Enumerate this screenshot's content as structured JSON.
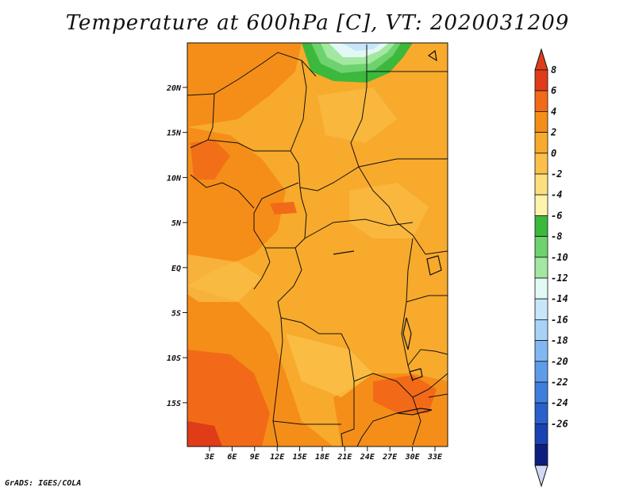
{
  "title": "Temperature at 600hPa [C], VT: 2020031209",
  "credit": "GrADS: IGES/COLA",
  "map": {
    "lat_labels": [
      "20N",
      "15N",
      "10N",
      "5N",
      "EQ",
      "5S",
      "10S",
      "15S"
    ],
    "lon_labels": [
      "3E",
      "6E",
      "9E",
      "12E",
      "15E",
      "18E",
      "21E",
      "24E",
      "27E",
      "30E",
      "33E"
    ]
  },
  "colorbar": {
    "labels": [
      "8",
      "6",
      "4",
      "2",
      "0",
      "-2",
      "-4",
      "-6",
      "-8",
      "-10",
      "-12",
      "-14",
      "-16",
      "-18",
      "-20",
      "-22",
      "-24",
      "-26"
    ],
    "colors": [
      "#e03c18",
      "#f26a18",
      "#f58e18",
      "#f8aa2c",
      "#fac04a",
      "#fde07e",
      "#fef4ac",
      "#3cb83c",
      "#6ed26e",
      "#a2e8a0",
      "#e2f8f4",
      "#c8e6fa",
      "#a8d2f8",
      "#82b8f2",
      "#5e9cea",
      "#3e7edc",
      "#2a60cc",
      "#1a42b4",
      "#0e1e80"
    ],
    "over_color": "#e03c18",
    "under_color": "#d4d8f4"
  }
}
